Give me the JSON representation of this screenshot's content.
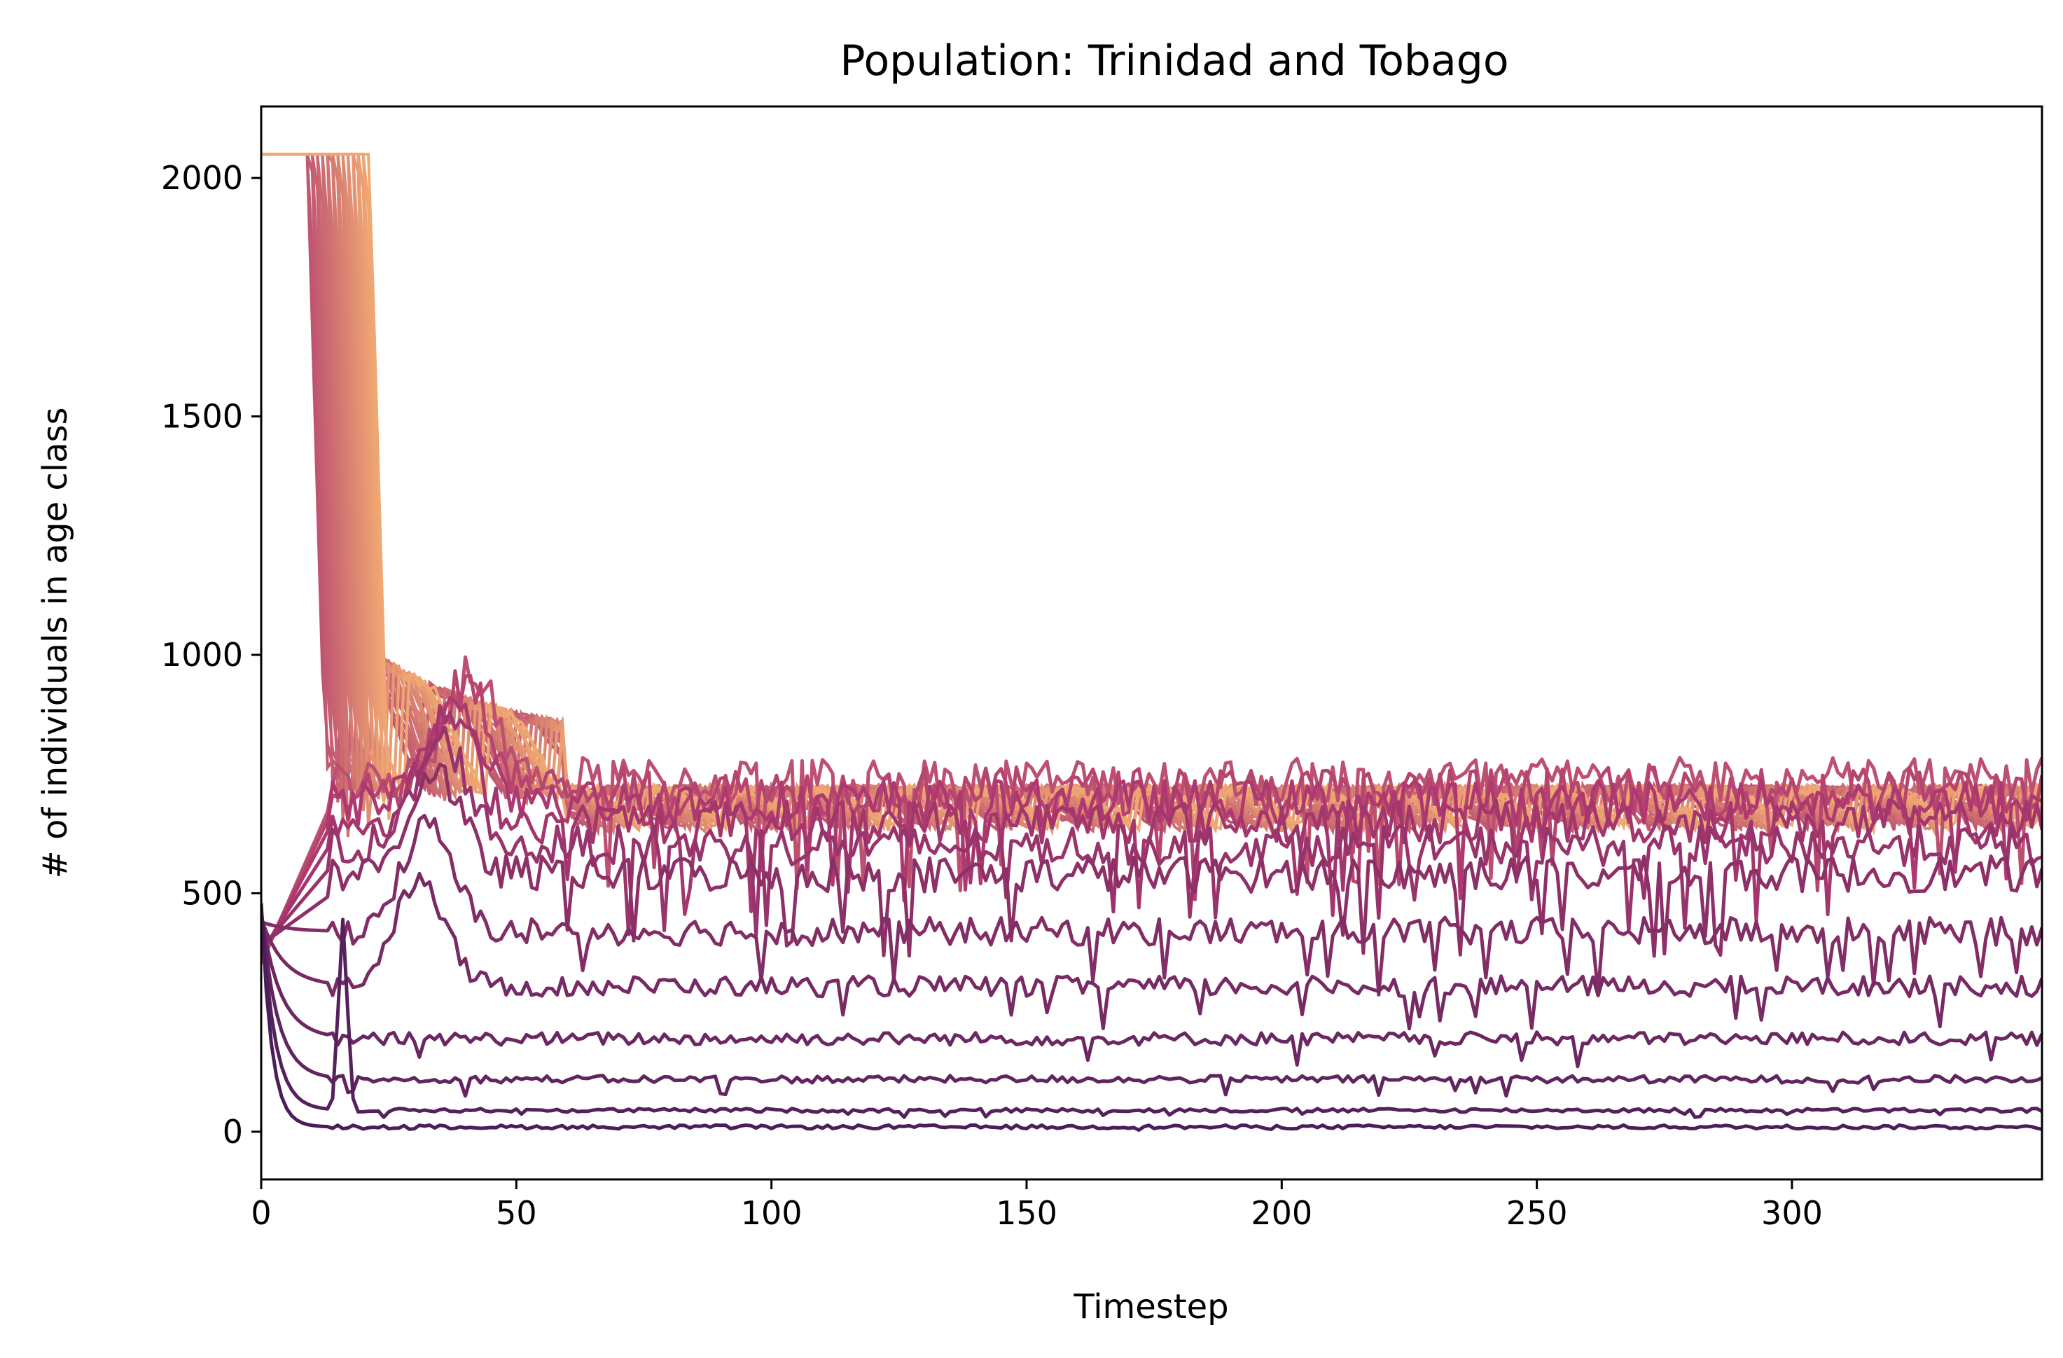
{
  "chart_data": {
    "type": "line",
    "title": "Population: Trinidad and Tobago",
    "xlabel": "Timestep",
    "ylabel": "# of individuals in age class",
    "xlim": [
      0,
      349
    ],
    "ylim": [
      -100,
      2150
    ],
    "xticks": [
      0,
      50,
      100,
      150,
      200,
      250,
      300
    ],
    "yticks": [
      0,
      500,
      1000,
      1500,
      2000
    ],
    "grid": false,
    "legend": "none",
    "colormap": "flare (dark purple for youngest age class to light orange for oldest)",
    "color_range": [
      "#4a1e5a",
      "#f0a872"
    ],
    "approx_levels": {
      "series_count": 12,
      "early_peak_x": [
        0,
        9
      ],
      "early_peak_value": 2050,
      "steady_state_values": [
        10,
        45,
        110,
        195,
        305,
        420,
        540,
        600,
        650,
        690,
        715,
        735
      ]
    }
  }
}
